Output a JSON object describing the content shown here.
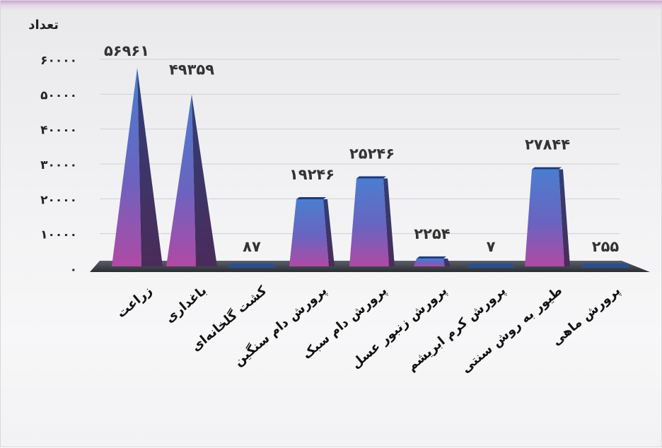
{
  "chart_data": {
    "type": "bar",
    "bar_style": "3d-pyramid-cone",
    "ylabel": "تعداد",
    "xlabel": "",
    "ylim": [
      0,
      60000
    ],
    "yticks": [
      0,
      10000,
      20000,
      30000,
      40000,
      50000,
      60000
    ],
    "ytick_labels": [
      "۰",
      "۱۰۰۰۰",
      "۲۰۰۰۰",
      "۳۰۰۰۰",
      "۴۰۰۰۰",
      "۵۰۰۰۰",
      "۶۰۰۰۰"
    ],
    "grid": true,
    "categories": [
      "زراعت",
      "باغداری",
      "کشت گلخانه‌ای",
      "پرورش دام سنگین",
      "پرورش دام سبک",
      "پرورش زنبور عسل",
      "پرورش  کرم ابریشم",
      "طیور به روش سنتی",
      "پرورش ماهی"
    ],
    "values": [
      56961,
      49359,
      87,
      19246,
      25246,
      2254,
      7,
      27844,
      255
    ],
    "value_labels": [
      "۵۶۹۶۱",
      "۴۹۳۵۹",
      "۸۷",
      "۱۹۲۴۶",
      "۲۵۲۴۶",
      "۲۲۵۴",
      "۷",
      "۲۷۸۴۴",
      "۲۵۵"
    ],
    "colors": {
      "bar_top": "#4a78c8",
      "bar_bottom": "#a248a0",
      "bar_dark_side": "#3d2a5c",
      "floor": "#3a3e48",
      "flat_bar": "#2a4f8c"
    }
  }
}
